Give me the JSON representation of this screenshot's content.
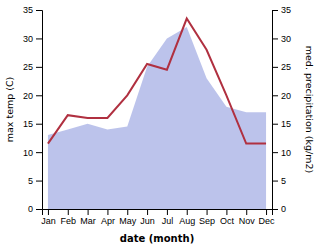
{
  "chart_data": {
    "type": "line",
    "categories": [
      "Jan",
      "Feb",
      "Mar",
      "Apr",
      "May",
      "Jun",
      "Jul",
      "Aug",
      "Sep",
      "Oct",
      "Nov",
      "Dec"
    ],
    "series": [
      {
        "type": "area",
        "axis": "y2",
        "color": "#b0b8e8",
        "values": [
          13.0,
          14.0,
          15.0,
          14.0,
          14.5,
          25.0,
          30.0,
          32.0,
          23.0,
          18.0,
          17.0,
          17.0
        ]
      },
      {
        "type": "line",
        "color": "#b03040",
        "values": [
          11.5,
          16.5,
          16.0,
          16.0,
          20.0,
          25.5,
          24.5,
          33.5,
          28.0,
          20.0,
          11.5,
          11.5
        ]
      }
    ],
    "xlabel": "date (month)",
    "ylabel": "max temp (C)",
    "y2label": "med. precipitation (kg/m2)",
    "ylim": [
      0,
      35
    ],
    "yticks": [
      0,
      5,
      10,
      15,
      20,
      25,
      30,
      35
    ],
    "y2lim": [
      0,
      35
    ],
    "y2ticks": [
      0,
      5,
      10,
      15,
      20,
      25,
      30,
      35
    ],
    "grid": false
  }
}
